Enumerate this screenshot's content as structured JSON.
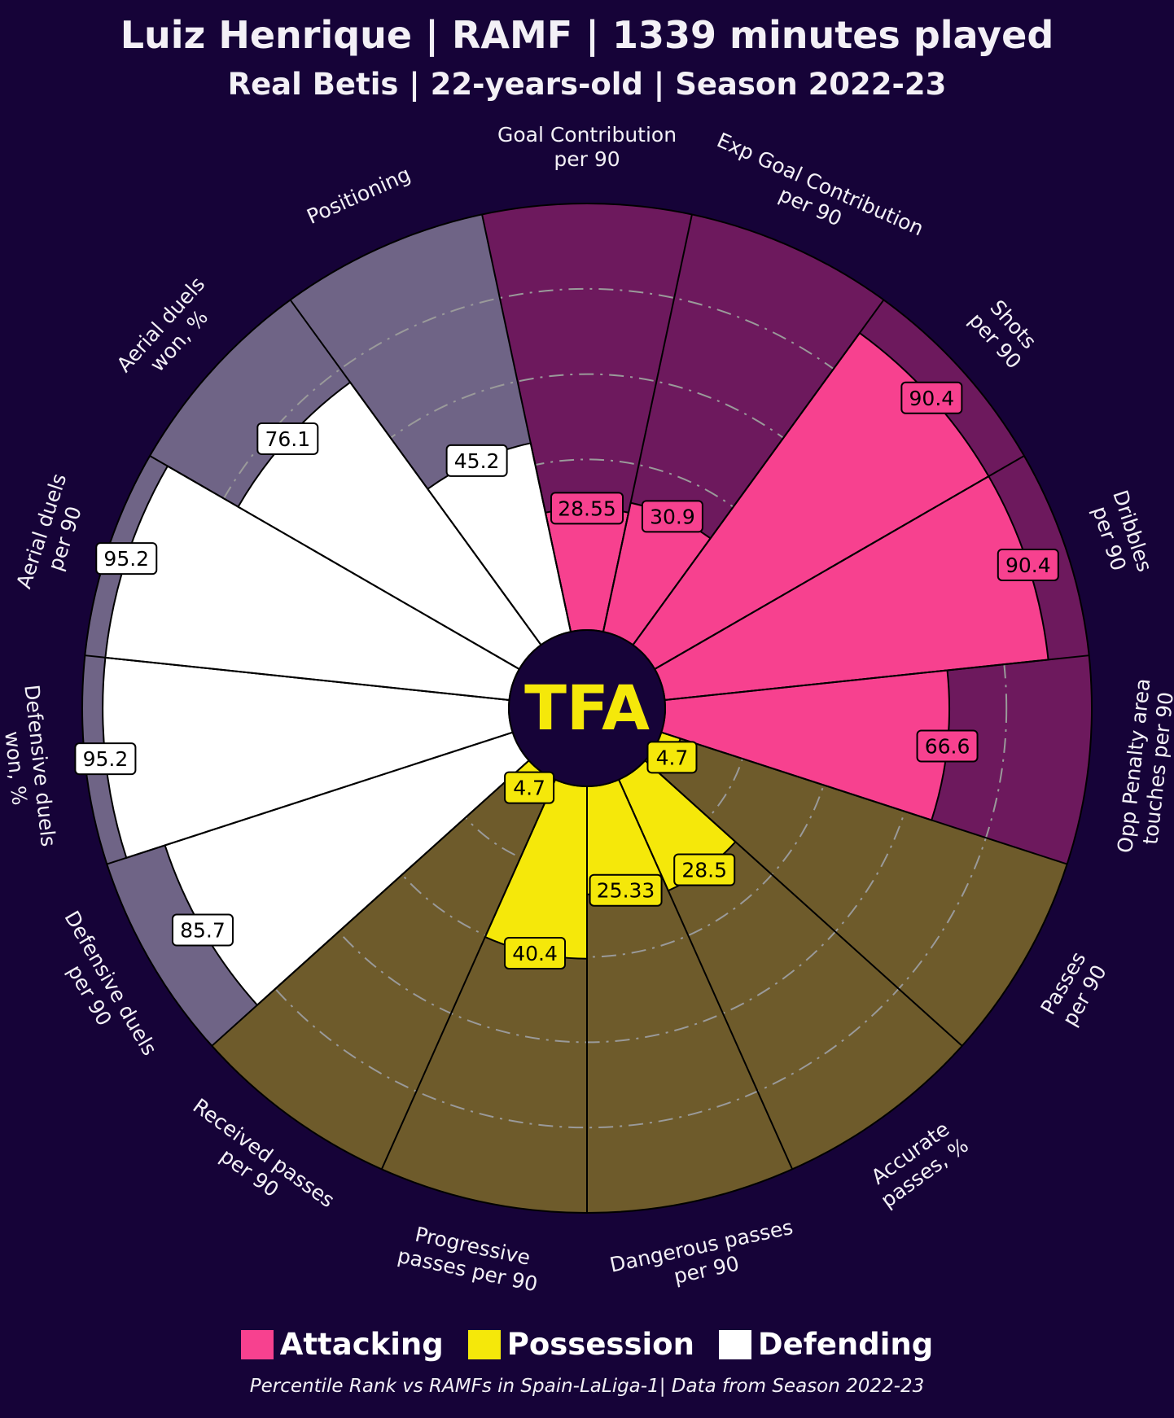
{
  "title": "Luiz Henrique | RAMF | 1339 minutes played",
  "subtitle": "Real Betis | 22-years-old | Season 2022-23",
  "logo_text": "TFA",
  "footer": "Percentile Rank vs RAMFs in Spain-LaLiga-1| Data from Season 2022-23",
  "legend": [
    {
      "label": "Attacking",
      "color": "#f7418f"
    },
    {
      "label": "Possession",
      "color": "#f5e80a"
    },
    {
      "label": "Defending",
      "color": "#ffffff"
    }
  ],
  "colors": {
    "background": "#160338",
    "Attacking_bg": "#6d195d",
    "Possession_bg": "#6e5b2b",
    "Defending_bg": "#6f6486",
    "outline": "#000000",
    "grid": "#9a9a9a",
    "center": "#160338",
    "logo": "#f5e80a",
    "label_text": "#f3f0f6"
  },
  "chart_data": {
    "type": "pie",
    "subtype": "polar-bar (pizza) percentile chart",
    "rlim": [
      0,
      100
    ],
    "gridlines": [
      20,
      40,
      60,
      80
    ],
    "categories": [
      {
        "label": "Goal Contribution\nper 90",
        "value": 28.55,
        "group": "Attacking"
      },
      {
        "label": "Exp Goal Contribution\nper 90",
        "value": 30.9,
        "group": "Attacking"
      },
      {
        "label": "Shots\nper 90",
        "value": 90.4,
        "group": "Attacking"
      },
      {
        "label": "Dribbles\nper 90",
        "value": 90.4,
        "group": "Attacking"
      },
      {
        "label": "Opp Penalty area\ntouches per 90",
        "value": 66.6,
        "group": "Attacking"
      },
      {
        "label": "Passes\nper 90",
        "value": 4.7,
        "group": "Possession"
      },
      {
        "label": "Accurate\npasses, %",
        "value": 28.5,
        "group": "Possession"
      },
      {
        "label": "Dangerous passes\nper 90",
        "value": 25.33,
        "group": "Possession"
      },
      {
        "label": "Progressive\npasses per 90",
        "value": 40.4,
        "group": "Possession"
      },
      {
        "label": "Received passes\nper 90",
        "value": 4.7,
        "group": "Possession"
      },
      {
        "label": "Defensive duels\nper 90",
        "value": 85.7,
        "group": "Defending"
      },
      {
        "label": "Defensive duels\nwon, %",
        "value": 95.2,
        "group": "Defending"
      },
      {
        "label": "Aerial duels\nper 90",
        "value": 95.2,
        "group": "Defending"
      },
      {
        "label": "Aerial duels\nwon, %",
        "value": 76.1,
        "group": "Defending"
      },
      {
        "label": "Positioning",
        "value": 45.2,
        "group": "Defending"
      }
    ]
  }
}
